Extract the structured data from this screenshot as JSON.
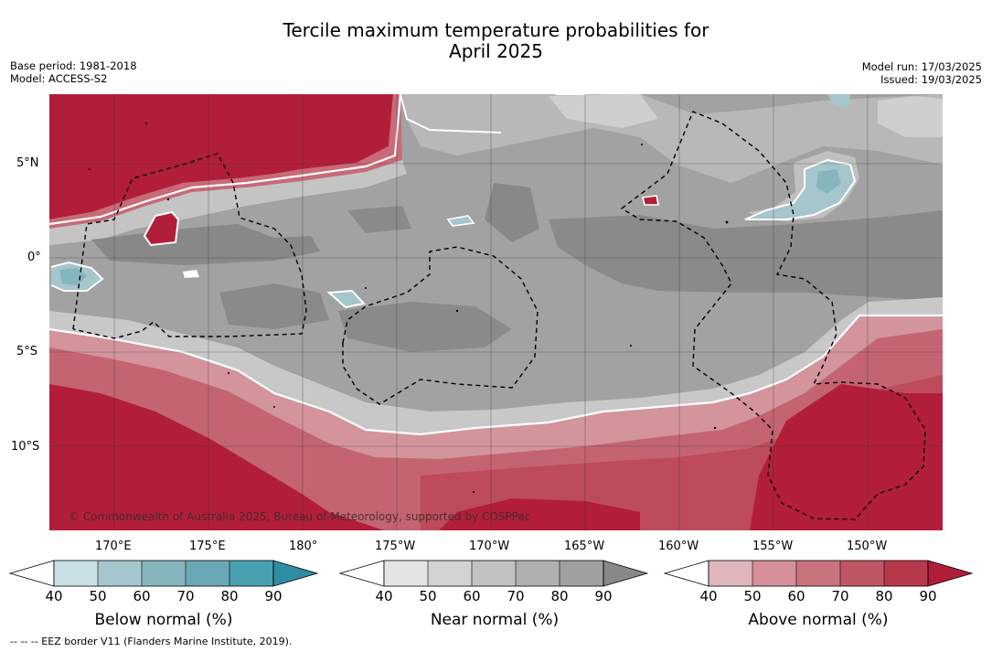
{
  "title_line1": "Tercile maximum temperature probabilities for",
  "title_line2": "April 2025",
  "meta_left": {
    "line1": "Base period: 1981-2018",
    "line2": "Model: ACCESS-S2"
  },
  "meta_right": {
    "line1": "Model run: 17/03/2025",
    "line2": "Issued: 19/03/2025"
  },
  "lat_ticks": [
    "5°N",
    "0°",
    "5°S",
    "10°S"
  ],
  "lon_ticks": [
    "170°E",
    "175°E",
    "180°",
    "175°W",
    "170°W",
    "165°W",
    "160°W",
    "155°W",
    "150°W"
  ],
  "copyright": "© Commonwealth of Australia 2025, Bureau of Meteorology, supported by COSPPac",
  "footer": "--  --  -- EEZ border V11 (Flanders Marine Institute, 2019).",
  "colorbars": [
    {
      "label": "Below normal (%)",
      "ticks": [
        "40",
        "50",
        "60",
        "70",
        "80",
        "90"
      ],
      "colors": [
        "#c9e0e6",
        "#a4c6cc",
        "#86b5bd",
        "#6aa8b6",
        "#49a0b0",
        "#2d8ea3"
      ]
    },
    {
      "label": "Near normal (%)",
      "ticks": [
        "40",
        "50",
        "60",
        "70",
        "80",
        "90"
      ],
      "colors": [
        "#e4e4e4",
        "#d2d2d2",
        "#c2c2c2",
        "#b0b0b0",
        "#a0a0a0",
        "#888888"
      ]
    },
    {
      "label": "Above normal (%)",
      "ticks": [
        "40",
        "50",
        "60",
        "70",
        "80",
        "90"
      ],
      "colors": [
        "#e0b6bd",
        "#d48f99",
        "#c9737f",
        "#bf5665",
        "#b8384c",
        "#b01d38"
      ]
    }
  ]
}
